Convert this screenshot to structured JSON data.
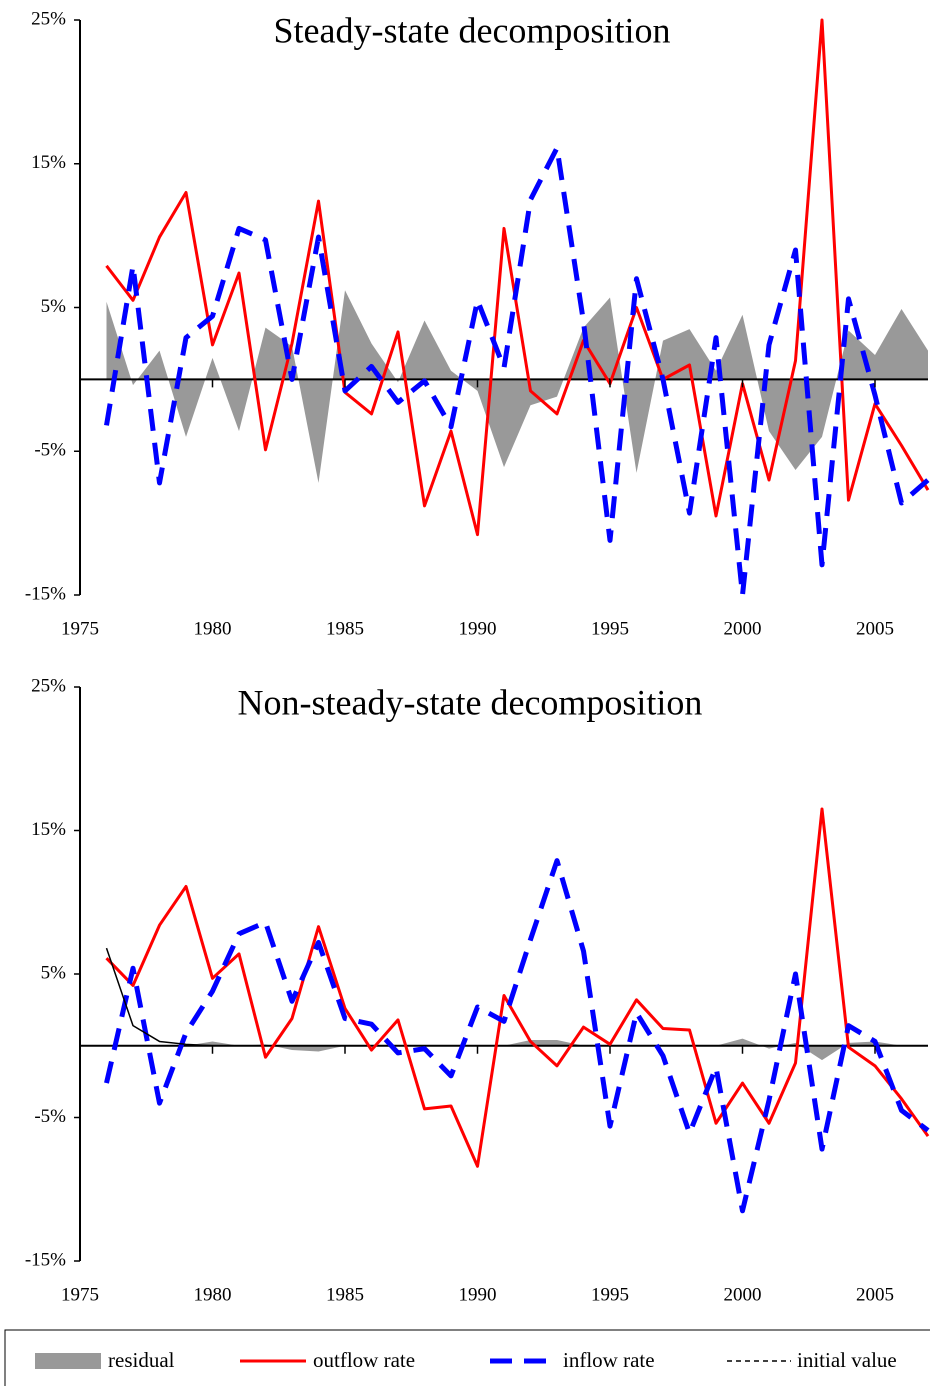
{
  "chart_data": [
    {
      "type": "line",
      "title": "Steady-state decomposition",
      "x": [
        1976,
        1977,
        1978,
        1979,
        1980,
        1981,
        1982,
        1983,
        1984,
        1985,
        1986,
        1987,
        1988,
        1989,
        1990,
        1991,
        1992,
        1993,
        1994,
        1995,
        1996,
        1997,
        1998,
        1999,
        2000,
        2001,
        2002,
        2003,
        2004,
        2005,
        2006,
        2007
      ],
      "xlim": [
        1975,
        2007
      ],
      "xticks": [
        1975,
        1980,
        1985,
        1990,
        1995,
        2000,
        2005
      ],
      "ylim": [
        -15,
        25
      ],
      "yticks": [
        {
          "value": -15,
          "label": "-15%"
        },
        {
          "value": -5,
          "label": "-5%"
        },
        {
          "value": 5,
          "label": "5%"
        },
        {
          "value": 15,
          "label": "15%"
        },
        {
          "value": 25,
          "label": "25%"
        }
      ],
      "series": [
        {
          "name": "residual",
          "type": "area",
          "color": "#999999",
          "values": [
            5.4,
            -0.4,
            2.0,
            -4.0,
            1.5,
            -3.6,
            3.6,
            2.3,
            -7.2,
            6.2,
            2.5,
            -0.2,
            4.1,
            0.6,
            -0.8,
            -6.1,
            -1.8,
            -1.2,
            3.6,
            5.7,
            -6.5,
            2.7,
            3.5,
            0.6,
            4.5,
            -3.6,
            -6.3,
            -4.0,
            3.4,
            1.7,
            4.9,
            2.0
          ]
        },
        {
          "name": "outflow rate",
          "type": "line",
          "color": "#ff0000",
          "values": [
            7.9,
            5.5,
            9.9,
            13.0,
            2.4,
            7.4,
            -4.9,
            2.5,
            12.4,
            -0.9,
            -2.4,
            3.3,
            -8.8,
            -3.6,
            -10.8,
            10.5,
            -0.8,
            -2.4,
            2.7,
            -0.3,
            5.0,
            0,
            1.0,
            -9.5,
            -0.3,
            -7.0,
            1.3,
            25,
            -8.4,
            -1.7,
            -4.6,
            -7.7
          ]
        },
        {
          "name": "inflow rate",
          "type": "dashed",
          "color": "#0000ff",
          "values": [
            -3.2,
            7.9,
            -7.2,
            2.9,
            4.4,
            10.5,
            9.7,
            0,
            9.9,
            -0.8,
            0.9,
            -1.6,
            -0.1,
            -3.3,
            5.5,
            0.8,
            12.5,
            16.1,
            4.0,
            -11.2,
            7.0,
            0,
            -9.3,
            2.9,
            -15,
            2.4,
            9.0,
            -12.9,
            5.6,
            -1.1,
            -8.6,
            -7.0
          ]
        }
      ]
    },
    {
      "type": "line",
      "title": "Non-steady-state decomposition",
      "x": [
        1976,
        1977,
        1978,
        1979,
        1980,
        1981,
        1982,
        1983,
        1984,
        1985,
        1986,
        1987,
        1988,
        1989,
        1990,
        1991,
        1992,
        1993,
        1994,
        1995,
        1996,
        1997,
        1998,
        1999,
        2000,
        2001,
        2002,
        2003,
        2004,
        2005,
        2006,
        2007
      ],
      "xlim": [
        1975,
        2007
      ],
      "xticks": [
        1975,
        1980,
        1985,
        1990,
        1995,
        2000,
        2005
      ],
      "ylim": [
        -15,
        25
      ],
      "yticks": [
        {
          "value": -15,
          "label": "-15%"
        },
        {
          "value": -5,
          "label": "-5%"
        },
        {
          "value": 5,
          "label": "5%"
        },
        {
          "value": 15,
          "label": "15%"
        },
        {
          "value": 25,
          "label": "25%"
        }
      ],
      "series": [
        {
          "name": "residual",
          "type": "area",
          "color": "#999999",
          "values": [
            0,
            0,
            0,
            0,
            0.3,
            0,
            0.1,
            -0.3,
            -0.4,
            0,
            0,
            0,
            0,
            0,
            0,
            0,
            0.4,
            0.4,
            0,
            0,
            0,
            0,
            0,
            0,
            0.5,
            -0.2,
            0.2,
            -1.0,
            0.2,
            0.3,
            0,
            0
          ]
        },
        {
          "name": "outflow rate",
          "type": "line",
          "color": "#ff0000",
          "values": [
            6.1,
            4.2,
            8.4,
            11.1,
            4.7,
            6.4,
            -0.8,
            1.9,
            8.3,
            2.6,
            -0.3,
            1.8,
            -4.4,
            -4.2,
            -8.4,
            3.5,
            0.3,
            -1.4,
            1.3,
            0.1,
            3.2,
            1.2,
            1.1,
            -5.4,
            -2.6,
            -5.4,
            -1.2,
            16.5,
            -0.1,
            -1.4,
            -3.7,
            -6.3
          ]
        },
        {
          "name": "inflow rate",
          "type": "dashed",
          "color": "#0000ff",
          "values": [
            -2.6,
            5.4,
            -4.0,
            0.9,
            3.8,
            7.8,
            8.6,
            3.1,
            7.2,
            1.9,
            1.5,
            -0.5,
            -0.2,
            -2.1,
            2.7,
            1.7,
            7.4,
            12.9,
            6.6,
            -5.6,
            2.3,
            -0.7,
            -6.1,
            -1.5,
            -11.5,
            -3.8,
            5.0,
            -7.2,
            1.4,
            0.3,
            -4.5,
            -5.9
          ]
        },
        {
          "name": "initial value",
          "type": "thin",
          "color": "#000000",
          "values": [
            6.8,
            1.4,
            0.3,
            0.1,
            0,
            0,
            null,
            null,
            null,
            null,
            null,
            null,
            null,
            null,
            null,
            null,
            null,
            null,
            null,
            null,
            null,
            null,
            null,
            null,
            null,
            null,
            null,
            null,
            null,
            null,
            null,
            null
          ]
        }
      ]
    }
  ]
}
